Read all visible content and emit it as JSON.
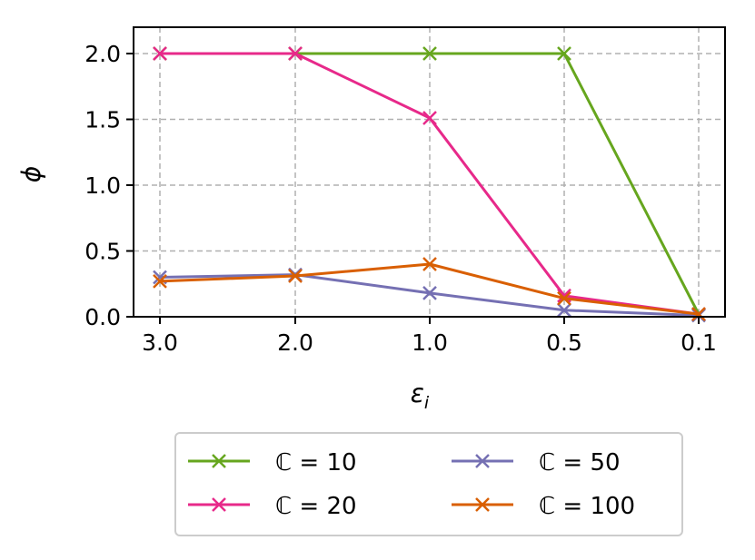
{
  "chart_data": {
    "type": "line",
    "categories": [
      "3.0",
      "2.0",
      "1.0",
      "0.5",
      "0.1"
    ],
    "xlabel": "ε",
    "xlabel_subscript": "i",
    "ylabel": "ϕ",
    "ylim": [
      0.0,
      2.2
    ],
    "yticks": [
      "0.0",
      "0.5",
      "1.0",
      "1.5",
      "2.0"
    ],
    "grid": true,
    "legend_position": "bottom-center",
    "marker": "x",
    "series": [
      {
        "name": "ℂ = 10",
        "color": "#66a61e",
        "values": [
          2.0,
          2.0,
          2.0,
          2.0,
          0.02
        ]
      },
      {
        "name": "ℂ = 20",
        "color": "#e7298a",
        "values": [
          2.0,
          2.0,
          1.51,
          0.16,
          0.02
        ]
      },
      {
        "name": "ℂ = 50",
        "color": "#7570b3",
        "values": [
          0.3,
          0.32,
          0.18,
          0.05,
          0.01
        ]
      },
      {
        "name": "ℂ = 100",
        "color": "#d95f02",
        "values": [
          0.27,
          0.31,
          0.4,
          0.14,
          0.02
        ]
      }
    ]
  }
}
